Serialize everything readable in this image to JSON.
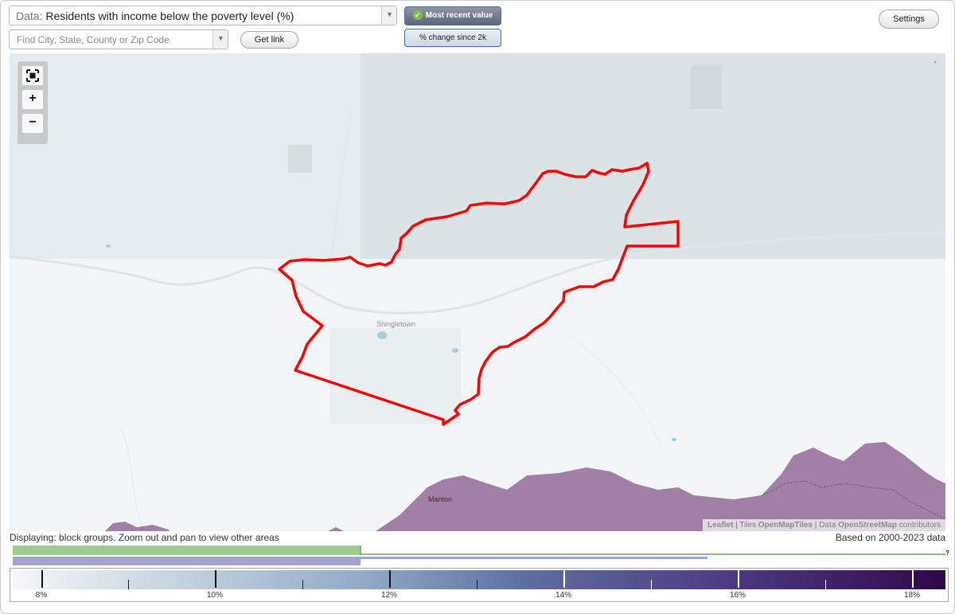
{
  "toolbar": {
    "data_prefix": "Data:",
    "data_value": "Residents with income below the poverty level (%)",
    "search_placeholder": "Find City, State, County or Zip Code",
    "get_link_label": "Get link",
    "settings_label": "Settings",
    "toggle_recent_label": "Most recent value",
    "toggle_change_label": "% change since 2k"
  },
  "map": {
    "labels": {
      "town1": "Shingletown",
      "town2": "Manton"
    },
    "zoom": {
      "fullscreen_icon": "fullscreen-icon",
      "zoom_in_label": "+",
      "zoom_out_label": "−"
    },
    "attribution": {
      "leaflet": "Leaflet",
      "tiles_prefix": "| Tiles",
      "tiles": "OpenMapTiles",
      "data_prefix": "| Data",
      "data": "OpenStreetMap",
      "contributors": "contributors"
    },
    "highlight_color": "#ff0000",
    "fill_color": "#8c5d8c"
  },
  "footer": {
    "displaying": "Displaying: block groups. Zoom out and pan to view other areas",
    "based_on": "Based on 2000-2023 data",
    "question_mark": "?"
  },
  "legend": {
    "labels": [
      "8%",
      "10%",
      "12%",
      "14%",
      "16%",
      "18%"
    ],
    "histogram_colors": {
      "top": "#9ccc8f",
      "bottom": "#a6a1d4"
    }
  }
}
